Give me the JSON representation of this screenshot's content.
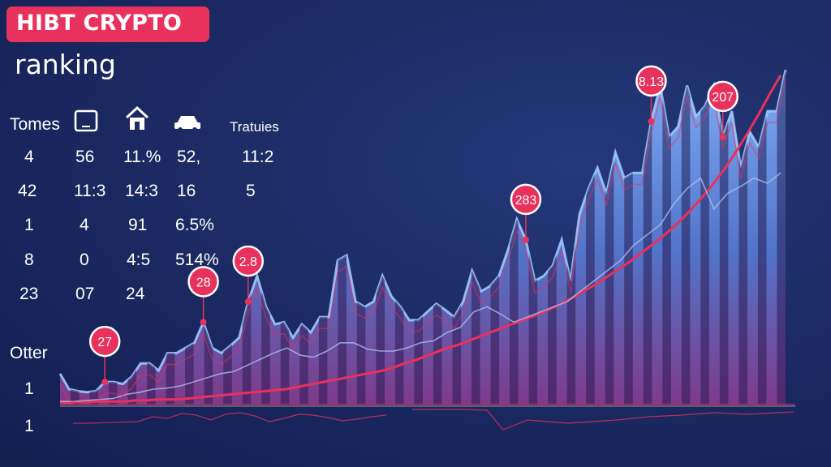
{
  "header": {
    "title": "HIBT CRYPTO",
    "subtitle": "ranking"
  },
  "table": {
    "headers": [
      "Tomes",
      "Tratuies"
    ],
    "header_icons": [
      "tablet-icon",
      "home-icon",
      "car-icon"
    ],
    "rows": [
      [
        "4",
        "56",
        "11.%",
        "52,",
        "11:2"
      ],
      [
        "42",
        "11:3",
        "14:3",
        "16",
        "5"
      ],
      [
        "1",
        "4",
        "91",
        "6.5%",
        ""
      ],
      [
        "8",
        "0",
        "4:5",
        "514%",
        ""
      ],
      [
        "23",
        "07",
        "24",
        "",
        ""
      ]
    ],
    "footer_label": "Otter",
    "footer_values": [
      "1",
      "1"
    ]
  },
  "colors": {
    "background": "#1b2a60",
    "accent": "#e8315c",
    "area_fill": "#5b8fe6",
    "trend_line": "#e8315c",
    "thin_line": "#aebde8"
  },
  "chart_data": {
    "type": "area",
    "title": "",
    "xlabel": "",
    "ylabel": "",
    "ylim": [
      0,
      330
    ],
    "grid": false,
    "series": [
      {
        "values": [
          30,
          15,
          13,
          12,
          13,
          22,
          22,
          20,
          27,
          40,
          40,
          33,
          50,
          50,
          55,
          60,
          80,
          55,
          50,
          57,
          65,
          100,
          125,
          95,
          78,
          80,
          65,
          78,
          70,
          85,
          85,
          140,
          145,
          100,
          95,
          100,
          125,
          105,
          95,
          82,
          82,
          90,
          98,
          92,
          85,
          100,
          130,
          110,
          115,
          125,
          150,
          180,
          160,
          120,
          125,
          135,
          160,
          120,
          185,
          210,
          230,
          205,
          245,
          220,
          225,
          225,
          275,
          310,
          260,
          270,
          310,
          280,
          290,
          310,
          260,
          285,
          230,
          265,
          250,
          285,
          285,
          325
        ]
      },
      {
        "values": [
          2,
          2,
          3,
          3,
          3,
          3,
          3,
          4,
          4,
          5,
          5,
          5,
          6,
          7,
          8,
          9,
          10,
          11,
          12,
          13,
          14,
          15,
          17,
          19,
          21,
          23,
          25,
          27,
          29,
          31,
          33,
          36,
          40,
          43,
          47,
          51,
          55,
          58,
          62,
          66,
          70,
          74,
          78,
          82,
          86,
          90,
          95,
          100,
          106,
          112,
          118,
          125,
          132,
          139,
          147,
          155,
          163,
          172,
          182,
          193,
          205,
          218,
          232,
          248,
          265,
          283,
          302,
          320
        ]
      },
      {
        "values": [
          3,
          3,
          4,
          5,
          6,
          10,
          12,
          15,
          16,
          18,
          22,
          26,
          30,
          32,
          38,
          44,
          50,
          55,
          48,
          46,
          52,
          60,
          60,
          54,
          52,
          52,
          55,
          60,
          62,
          70,
          75,
          90,
          95,
          88,
          80,
          85,
          90,
          95,
          100,
          110,
          120,
          130,
          140,
          155,
          165,
          175,
          195,
          210,
          220,
          190,
          205,
          212,
          220,
          215,
          225
        ]
      }
    ],
    "callouts": [
      {
        "label": "27",
        "x_index": 5
      },
      {
        "label": "28",
        "x_index": 16
      },
      {
        "label": "2.8",
        "x_index": 21
      },
      {
        "label": "283",
        "x_index": 52
      },
      {
        "label": "8.13",
        "x_index": 66
      },
      {
        "label": "207",
        "x_index": 74
      }
    ]
  }
}
